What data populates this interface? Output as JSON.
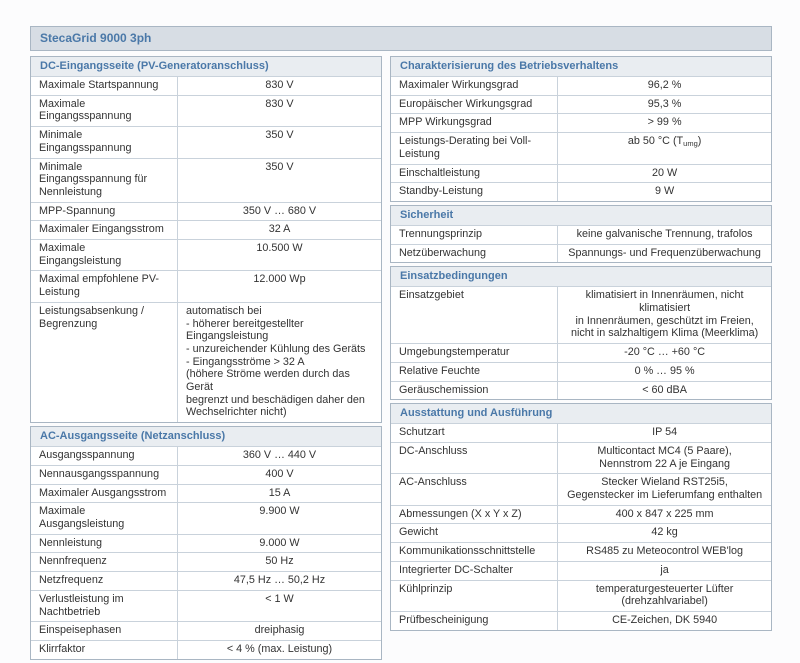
{
  "page_title": "StecaGrid 9000 3ph",
  "colors": {
    "title_bar_bg": "#d7dde4",
    "section_header_bg": "#e9edf1",
    "header_text": "#4a78a8",
    "border_outer": "#a9b6c3",
    "border_inner": "#c9d2db",
    "text": "#333333"
  },
  "columns": [
    {
      "name": "left",
      "sections": [
        {
          "header": "DC-Eingangsseite (PV-Generatoranschluss)",
          "rows": [
            {
              "label": "Maximale Startspannung",
              "value": "830 V"
            },
            {
              "label": "Maximale Eingangsspannung",
              "value": "830 V"
            },
            {
              "label": "Minimale Eingangsspannung",
              "value": "350 V"
            },
            {
              "label": "Minimale Eingangsspannung für Nennleistung",
              "value": "350 V"
            },
            {
              "label": "MPP-Spannung",
              "value": "350 V … 680 V"
            },
            {
              "label": "Maximaler Eingangsstrom",
              "value": "32 A"
            },
            {
              "label": "Maximale Eingangsleistung",
              "value": "10.500 W"
            },
            {
              "label": "Maximal empfohlene PV-Leistung",
              "value": "12.000 Wp"
            },
            {
              "label": "Leistungsabsenkung / Begrenzung",
              "value": "automatisch bei\n- höherer bereitgestellter Eingangsleistung\n- unzureichender Kühlung des Geräts\n- Eingangsströme > 32 A\n(höhere Ströme werden durch das Gerät\nbegrenzt und beschädigen daher den\nWechselrichter nicht)",
              "align": "left"
            }
          ]
        },
        {
          "header": "AC-Ausgangsseite (Netzanschluss)",
          "rows": [
            {
              "label": "Ausgangsspannung",
              "value": "360 V … 440 V"
            },
            {
              "label": "Nennausgangsspannung",
              "value": "400 V"
            },
            {
              "label": "Maximaler Ausgangsstrom",
              "value": "15 A"
            },
            {
              "label": "Maximale Ausgangsleistung",
              "value": "9.900 W"
            },
            {
              "label": "Nennleistung",
              "value": "9.000 W"
            },
            {
              "label": "Nennfrequenz",
              "value": "50 Hz"
            },
            {
              "label": "Netzfrequenz",
              "value": "47,5 Hz … 50,2 Hz"
            },
            {
              "label": "Verlustleistung im Nachtbetrieb",
              "value": "< 1 W"
            },
            {
              "label": "Einspeisephasen",
              "value": "dreiphasig"
            },
            {
              "label": "Klirrfaktor",
              "value": "< 4 % (max. Leistung)"
            }
          ]
        }
      ]
    },
    {
      "name": "right",
      "sections": [
        {
          "header": "Charakterisierung des Betriebsverhaltens",
          "rows": [
            {
              "label": "Maximaler Wirkungsgrad",
              "value": "96,2 %"
            },
            {
              "label": "Europäischer Wirkungsgrad",
              "value": "95,3 %"
            },
            {
              "label": "MPP Wirkungsgrad",
              "value": "> 99 %"
            },
            {
              "label": "Leistungs-Derating bei Voll-Leistung",
              "value_parts": {
                "pre": "ab 50 °C (T",
                "sub": "umg",
                "post": ")"
              }
            },
            {
              "label": "Einschaltleistung",
              "value": "20 W"
            },
            {
              "label": "Standby-Leistung",
              "value": "9 W"
            }
          ]
        },
        {
          "header": "Sicherheit",
          "rows": [
            {
              "label": "Trennungsprinzip",
              "value": "keine galvanische Trennung, trafolos"
            },
            {
              "label": "Netzüberwachung",
              "value": "Spannungs- und Frequenzüberwachung"
            }
          ]
        },
        {
          "header": "Einsatzbedingungen",
          "rows": [
            {
              "label": "Einsatzgebiet",
              "value": "klimatisiert in Innenräumen, nicht klimatisiert\nin Innenräumen, geschützt im Freien,\nnicht in salzhaltigem Klima (Meerklima)"
            },
            {
              "label": "Umgebungstemperatur",
              "value": "-20 °C … +60 °C"
            },
            {
              "label": "Relative Feuchte",
              "value": "0 % … 95 %"
            },
            {
              "label": "Geräuschemission",
              "value": "< 60 dBA"
            }
          ]
        },
        {
          "header": "Ausstattung und Ausführung",
          "rows": [
            {
              "label": "Schutzart",
              "value": "IP 54"
            },
            {
              "label": "DC-Anschluss",
              "value": "Multicontact MC4 (5 Paare),\nNennstrom 22 A je Eingang"
            },
            {
              "label": "AC-Anschluss",
              "value": "Stecker Wieland RST25i5,\nGegenstecker im Lieferumfang enthalten"
            },
            {
              "label": "Abmessungen (X x Y x Z)",
              "value": "400 x 847 x 225 mm"
            },
            {
              "label": "Gewicht",
              "value": "42 kg"
            },
            {
              "label": "Kommunikationsschnittstelle",
              "value": "RS485 zu Meteocontrol WEB'log"
            },
            {
              "label": "Integrierter DC-Schalter",
              "value": "ja"
            },
            {
              "label": "Kühlprinzip",
              "value": "temperaturgesteuerter Lüfter (drehzahlvariabel)"
            },
            {
              "label": "Prüfbescheinigung",
              "value": "CE-Zeichen, DK 5940"
            }
          ]
        }
      ]
    }
  ]
}
